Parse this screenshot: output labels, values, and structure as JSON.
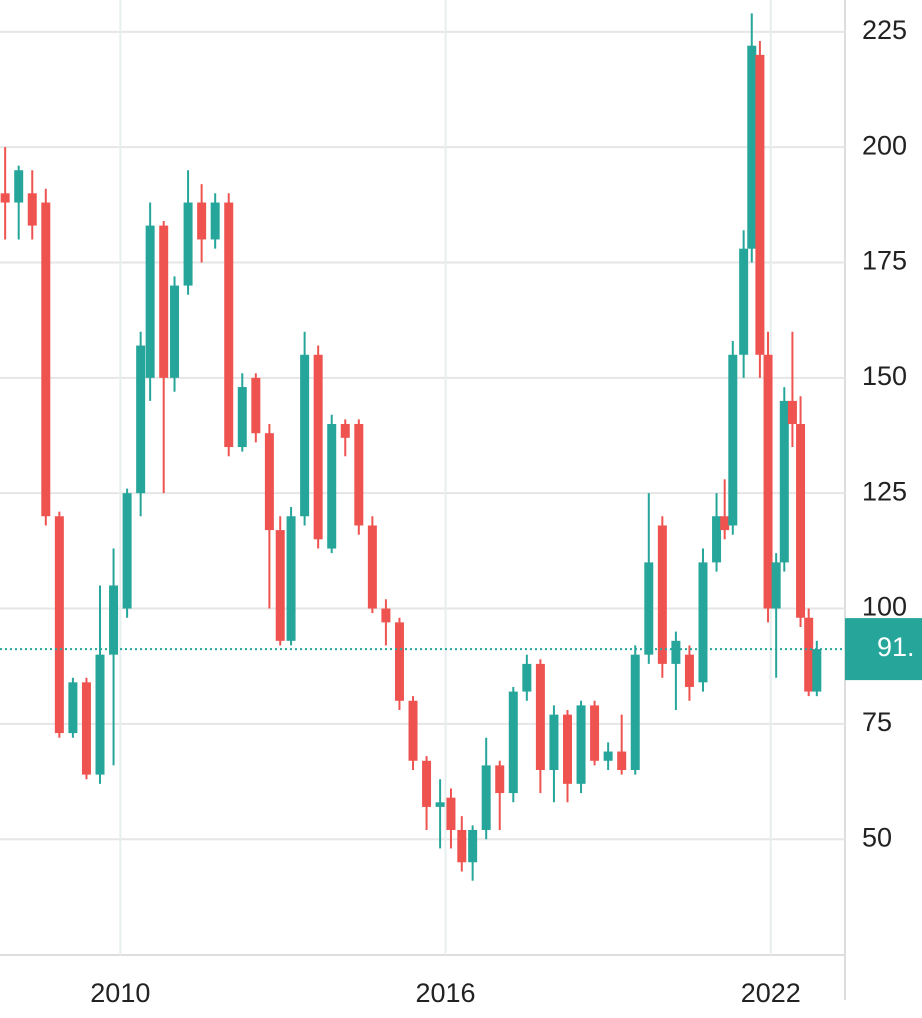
{
  "chart_data": {
    "type": "candlestick",
    "x": [
      2007.875,
      2008.125,
      2008.375,
      2008.625,
      2008.875,
      2009.125,
      2009.375,
      2009.625,
      2009.875,
      2010.125,
      2010.375,
      2010.55,
      2010.8,
      2011.0,
      2011.25,
      2011.5,
      2011.75,
      2012.0,
      2012.25,
      2012.5,
      2012.75,
      2012.95,
      2013.15,
      2013.4,
      2013.65,
      2013.9,
      2014.15,
      2014.4,
      2014.65,
      2014.9,
      2015.15,
      2015.4,
      2015.65,
      2015.9,
      2016.1,
      2016.3,
      2016.5,
      2016.75,
      2017.0,
      2017.25,
      2017.5,
      2017.75,
      2018.0,
      2018.25,
      2018.5,
      2018.75,
      2019.0,
      2019.25,
      2019.5,
      2019.75,
      2020.0,
      2020.25,
      2020.5,
      2020.75,
      2021.0,
      2021.15,
      2021.3,
      2021.5,
      2021.65,
      2021.8,
      2021.95,
      2022.1,
      2022.25,
      2022.4,
      2022.55,
      2022.7,
      2022.85
    ],
    "open": [
      190,
      188,
      190,
      188,
      120,
      73,
      84,
      64,
      90,
      100,
      125,
      150,
      183,
      150,
      170,
      188,
      180,
      188,
      135,
      150,
      138,
      117,
      93,
      120,
      155,
      113,
      140,
      140,
      118,
      100,
      97,
      80,
      67,
      57,
      59,
      52,
      45,
      52,
      66,
      60,
      82,
      88,
      65,
      77,
      62,
      79,
      67,
      69,
      65,
      90,
      118,
      88,
      90,
      84,
      110,
      120,
      118,
      155,
      178,
      220,
      155,
      100,
      110,
      145,
      140,
      98,
      82
    ],
    "high": [
      200,
      196,
      195,
      191,
      121,
      85,
      85,
      105,
      113,
      126,
      160,
      188,
      184,
      172,
      195,
      192,
      190,
      190,
      151,
      151,
      140,
      120,
      122,
      160,
      157,
      142,
      141,
      141,
      120,
      102,
      98,
      81,
      68,
      63,
      61,
      55,
      53,
      72,
      67,
      83,
      90,
      89,
      79,
      78,
      80,
      80,
      71,
      77,
      92,
      125,
      120,
      95,
      92,
      113,
      125,
      128,
      158,
      182,
      229,
      223,
      160,
      112,
      148,
      160,
      146,
      100,
      93
    ],
    "low": [
      180,
      180,
      180,
      118,
      72,
      72,
      63,
      62,
      66,
      98,
      120,
      145,
      125,
      147,
      168,
      175,
      178,
      133,
      134,
      136,
      100,
      92,
      92,
      118,
      113,
      112,
      133,
      116,
      99,
      92,
      78,
      65,
      52,
      48,
      48,
      43,
      41,
      50,
      52,
      58,
      80,
      60,
      58,
      58,
      60,
      66,
      65,
      64,
      64,
      88,
      85,
      78,
      80,
      82,
      108,
      115,
      116,
      150,
      175,
      150,
      97,
      85,
      108,
      135,
      96,
      81,
      81
    ],
    "close": [
      188,
      195,
      183,
      120,
      73,
      84,
      64,
      90,
      105,
      125,
      157,
      183,
      150,
      170,
      188,
      180,
      188,
      135,
      148,
      138,
      117,
      93,
      120,
      155,
      115,
      140,
      137,
      118,
      100,
      97,
      80,
      67,
      57,
      58,
      52,
      45,
      52,
      66,
      60,
      82,
      88,
      65,
      77,
      62,
      79,
      67,
      69,
      65,
      90,
      110,
      88,
      93,
      83,
      110,
      120,
      117,
      155,
      178,
      222,
      155,
      100,
      110,
      145,
      140,
      98,
      82,
      91.2
    ],
    "up_color": "#26a69a",
    "down_color": "#ef5350",
    "xlim": [
      2007.78,
      2023.37
    ],
    "xticks": [
      2010,
      2016,
      2022
    ],
    "ylim": [
      24.9,
      231.9
    ],
    "yticks": [
      50,
      75,
      100,
      125,
      150,
      175,
      200,
      225
    ],
    "grid": true,
    "last_value": 91.2,
    "last_value_label": "91."
  }
}
